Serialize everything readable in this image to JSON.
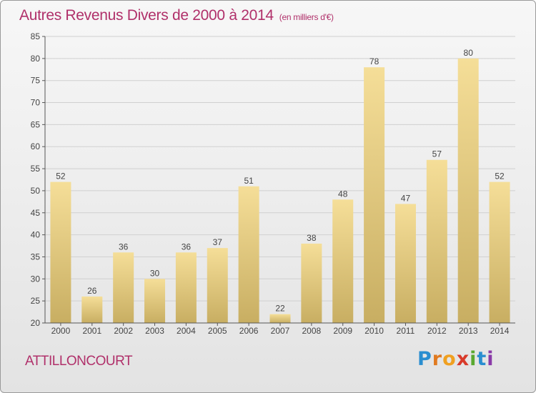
{
  "header": {
    "title": "Autres Revenus Divers de 2000 à 2014",
    "unit": "(en milliers d'€)"
  },
  "footer": {
    "commune": "ATTILLONCOURT",
    "logo": "Proxiti"
  },
  "colors": {
    "title": "#b0306a",
    "bar_light": "#f5de98",
    "bar_dark": "#c8ae62",
    "axis": "#555555",
    "grid": "#d0d0d0"
  },
  "chart_data": {
    "type": "bar",
    "title": "Autres Revenus Divers de 2000 à 2014",
    "xlabel": "",
    "ylabel": "",
    "categories": [
      "2000",
      "2001",
      "2002",
      "2003",
      "2004",
      "2005",
      "2006",
      "2007",
      "2008",
      "2009",
      "2010",
      "2011",
      "2012",
      "2013",
      "2014"
    ],
    "values": [
      52,
      26,
      36,
      30,
      36,
      37,
      51,
      22,
      38,
      48,
      78,
      47,
      57,
      80,
      52
    ],
    "ylim": [
      20,
      85
    ],
    "yticks": [
      20,
      25,
      30,
      35,
      40,
      45,
      50,
      55,
      60,
      65,
      70,
      75,
      80,
      85
    ],
    "grid": true,
    "data_labels": true
  }
}
